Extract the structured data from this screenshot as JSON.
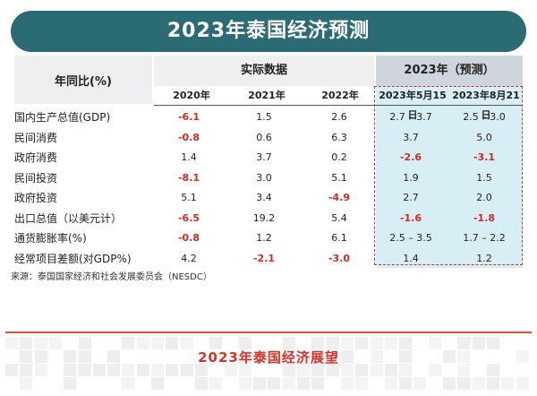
{
  "title": "2023年泰国经济预测",
  "table": {
    "corner": "年同比(%)",
    "actual_header": "实际数据",
    "forecast_header": "2023年（预测）",
    "years": [
      "2020年",
      "2021年",
      "2022年",
      "2023年5月15日",
      "2023年8月21日"
    ],
    "rows": [
      {
        "label": "国内生产总值(GDP)",
        "values": [
          "-6.1",
          "1.5",
          "2.6",
          "2.7 – 3.7",
          "2.5 – 3.0"
        ],
        "red": [
          true,
          false,
          false,
          false,
          false
        ]
      },
      {
        "label": "民间消费",
        "values": [
          "-0.8",
          "0.6",
          "6.3",
          "3.7",
          "5.0"
        ],
        "red": [
          true,
          false,
          false,
          false,
          false
        ]
      },
      {
        "label": "政府消费",
        "values": [
          "1.4",
          "3.7",
          "0.2",
          "-2.6",
          "-3.1"
        ],
        "red": [
          false,
          false,
          false,
          true,
          true
        ]
      },
      {
        "label": "民间投资",
        "values": [
          "-8.1",
          "3.0",
          "5.1",
          "1.9",
          "1.5"
        ],
        "red": [
          true,
          false,
          false,
          false,
          false
        ]
      },
      {
        "label": "政府投资",
        "values": [
          "5.1",
          "3.4",
          "-4.9",
          "2.7",
          "2.0"
        ],
        "red": [
          false,
          false,
          true,
          false,
          false
        ]
      },
      {
        "label": "出口总值（以美元计）",
        "values": [
          "-6.5",
          "19.2",
          "5.4",
          "-1.6",
          "-1.8"
        ],
        "red": [
          true,
          false,
          false,
          true,
          true
        ]
      },
      {
        "label": "通货膨胀率(%)",
        "values": [
          "-0.8",
          "1.2",
          "6.1",
          "2.5 – 3.5",
          "1.7 – 2.2"
        ],
        "red": [
          true,
          false,
          false,
          false,
          false
        ]
      },
      {
        "label": "经常项目差额(对GDP%)",
        "values": [
          "4.2",
          "-2.1",
          "-3.0",
          "1.4",
          "1.2"
        ],
        "red": [
          false,
          true,
          true,
          false,
          false
        ]
      }
    ]
  },
  "source": "来源：泰国国家经济和社会发展委员会（NESDC）",
  "footer_title": "2023年泰国经济展望",
  "colors": {
    "banner": "#2a6b74",
    "negative": "#d42a1f",
    "forecast_bg": "#d8eef5",
    "accent": "#e0502a"
  }
}
